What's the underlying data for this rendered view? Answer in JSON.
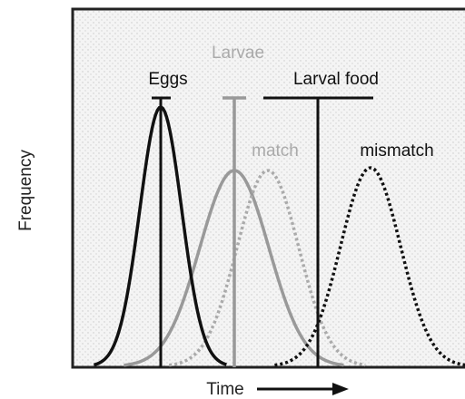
{
  "labels": {
    "larvae": "Larvae",
    "eggs": "Eggs",
    "larval_food": "Larval food",
    "match": "match",
    "mismatch": "mismatch",
    "y_axis": "Frequency",
    "x_axis": "Time"
  }
}
